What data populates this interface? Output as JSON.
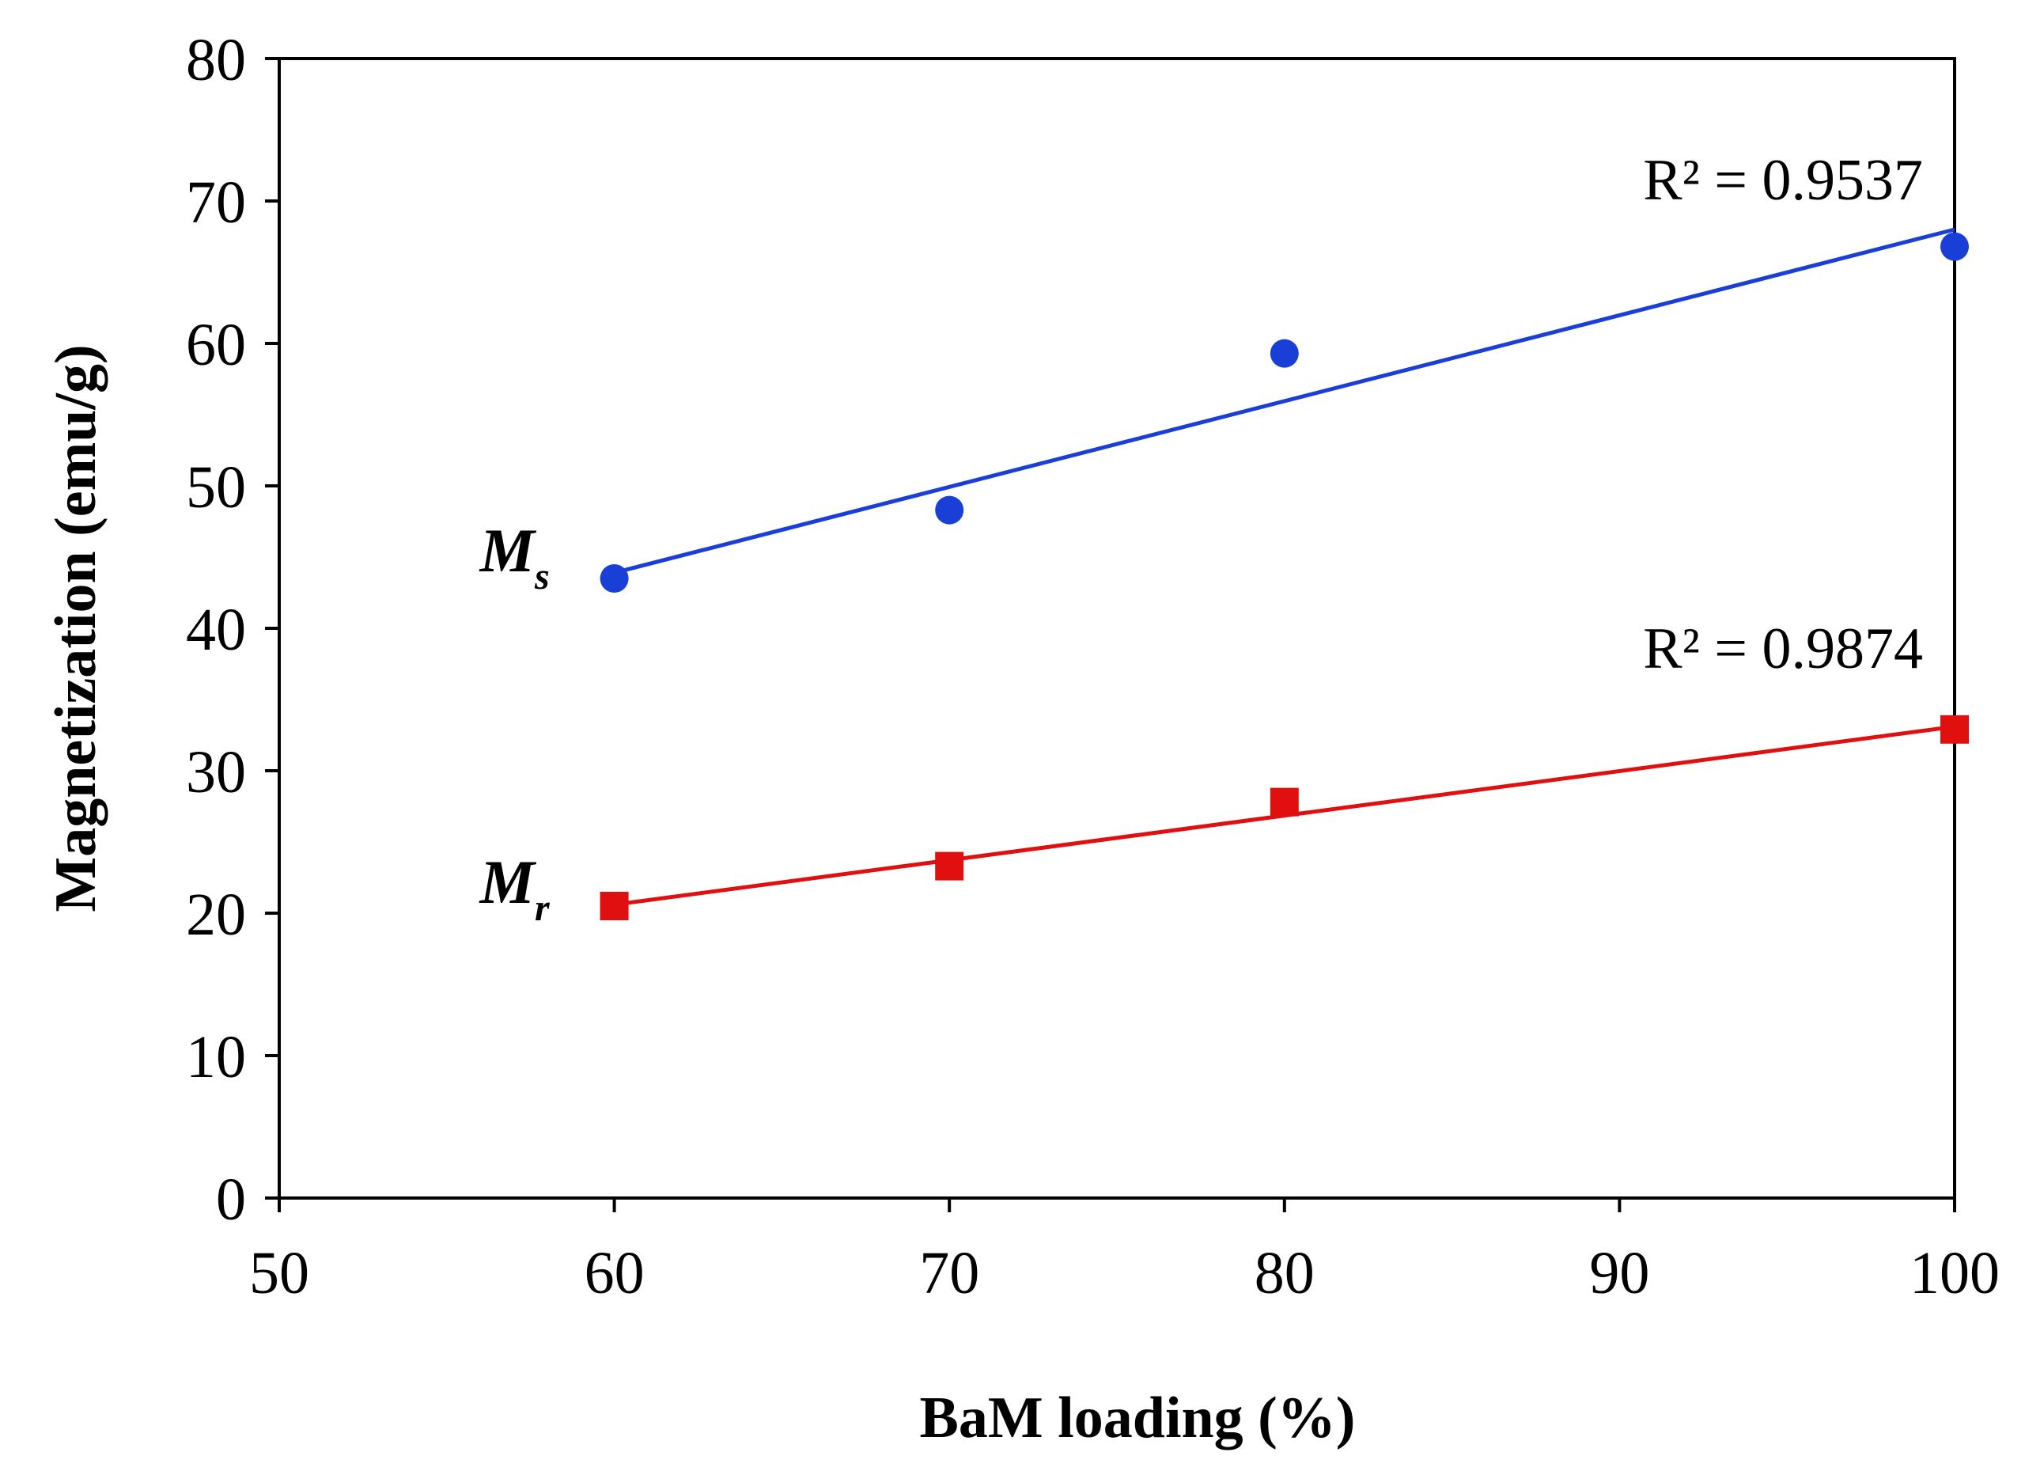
{
  "chart_data": {
    "type": "scatter",
    "title": "",
    "xlabel": "BaM loading (%)",
    "ylabel": "Magnetization (emu/g)",
    "xlim": [
      50,
      100
    ],
    "ylim": [
      0,
      80
    ],
    "xticks": [
      50,
      60,
      70,
      80,
      90,
      100
    ],
    "yticks": [
      0,
      10,
      20,
      30,
      40,
      50,
      60,
      70,
      80
    ],
    "grid": false,
    "series": [
      {
        "name": "Ms",
        "label_main": "M",
        "label_sub": "s",
        "marker": "circle",
        "color": "#1a3fd6",
        "x": [
          60,
          70,
          80,
          100
        ],
        "values": [
          43.5,
          48.3,
          59.3,
          66.8
        ],
        "trendline": {
          "type": "linear",
          "from": [
            60,
            43.9
          ],
          "to": [
            100,
            68.0
          ]
        },
        "r2_label": "R² = 0.9537"
      },
      {
        "name": "Mr",
        "label_main": "M",
        "label_sub": "r",
        "marker": "square",
        "color": "#e01010",
        "x": [
          60,
          70,
          80,
          100
        ],
        "values": [
          20.5,
          23.3,
          27.8,
          32.9
        ],
        "trendline": {
          "type": "linear",
          "from": [
            60,
            20.6
          ],
          "to": [
            100,
            33.1
          ]
        },
        "r2_label": "R² = 0.9874"
      }
    ]
  }
}
